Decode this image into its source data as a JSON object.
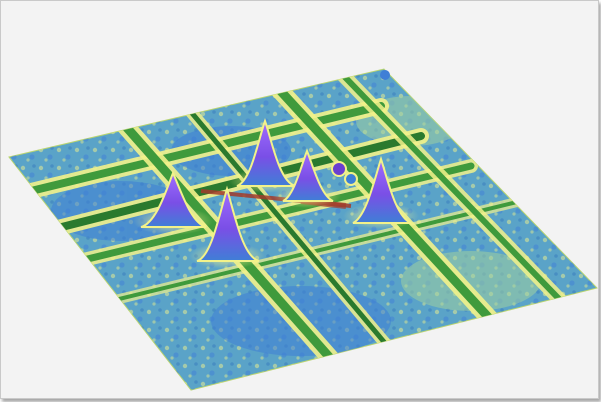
{
  "scene": {
    "subject": "3d-surface-plot",
    "colors": {
      "background": "#f3f3f3",
      "frame_border": "#c9c9c9",
      "surface_base": "#5aa3c8",
      "ridge_yellow": "#f2f28a",
      "band_green": "#3f9a3c",
      "band_dark": "#2a7a2e",
      "spot_blue": "#3f7fd6",
      "peak_purple": "#8a4fe0",
      "peak_violet": "#6a3fd0",
      "hot_red": "#a23b2a"
    },
    "peaks_count": 5
  }
}
